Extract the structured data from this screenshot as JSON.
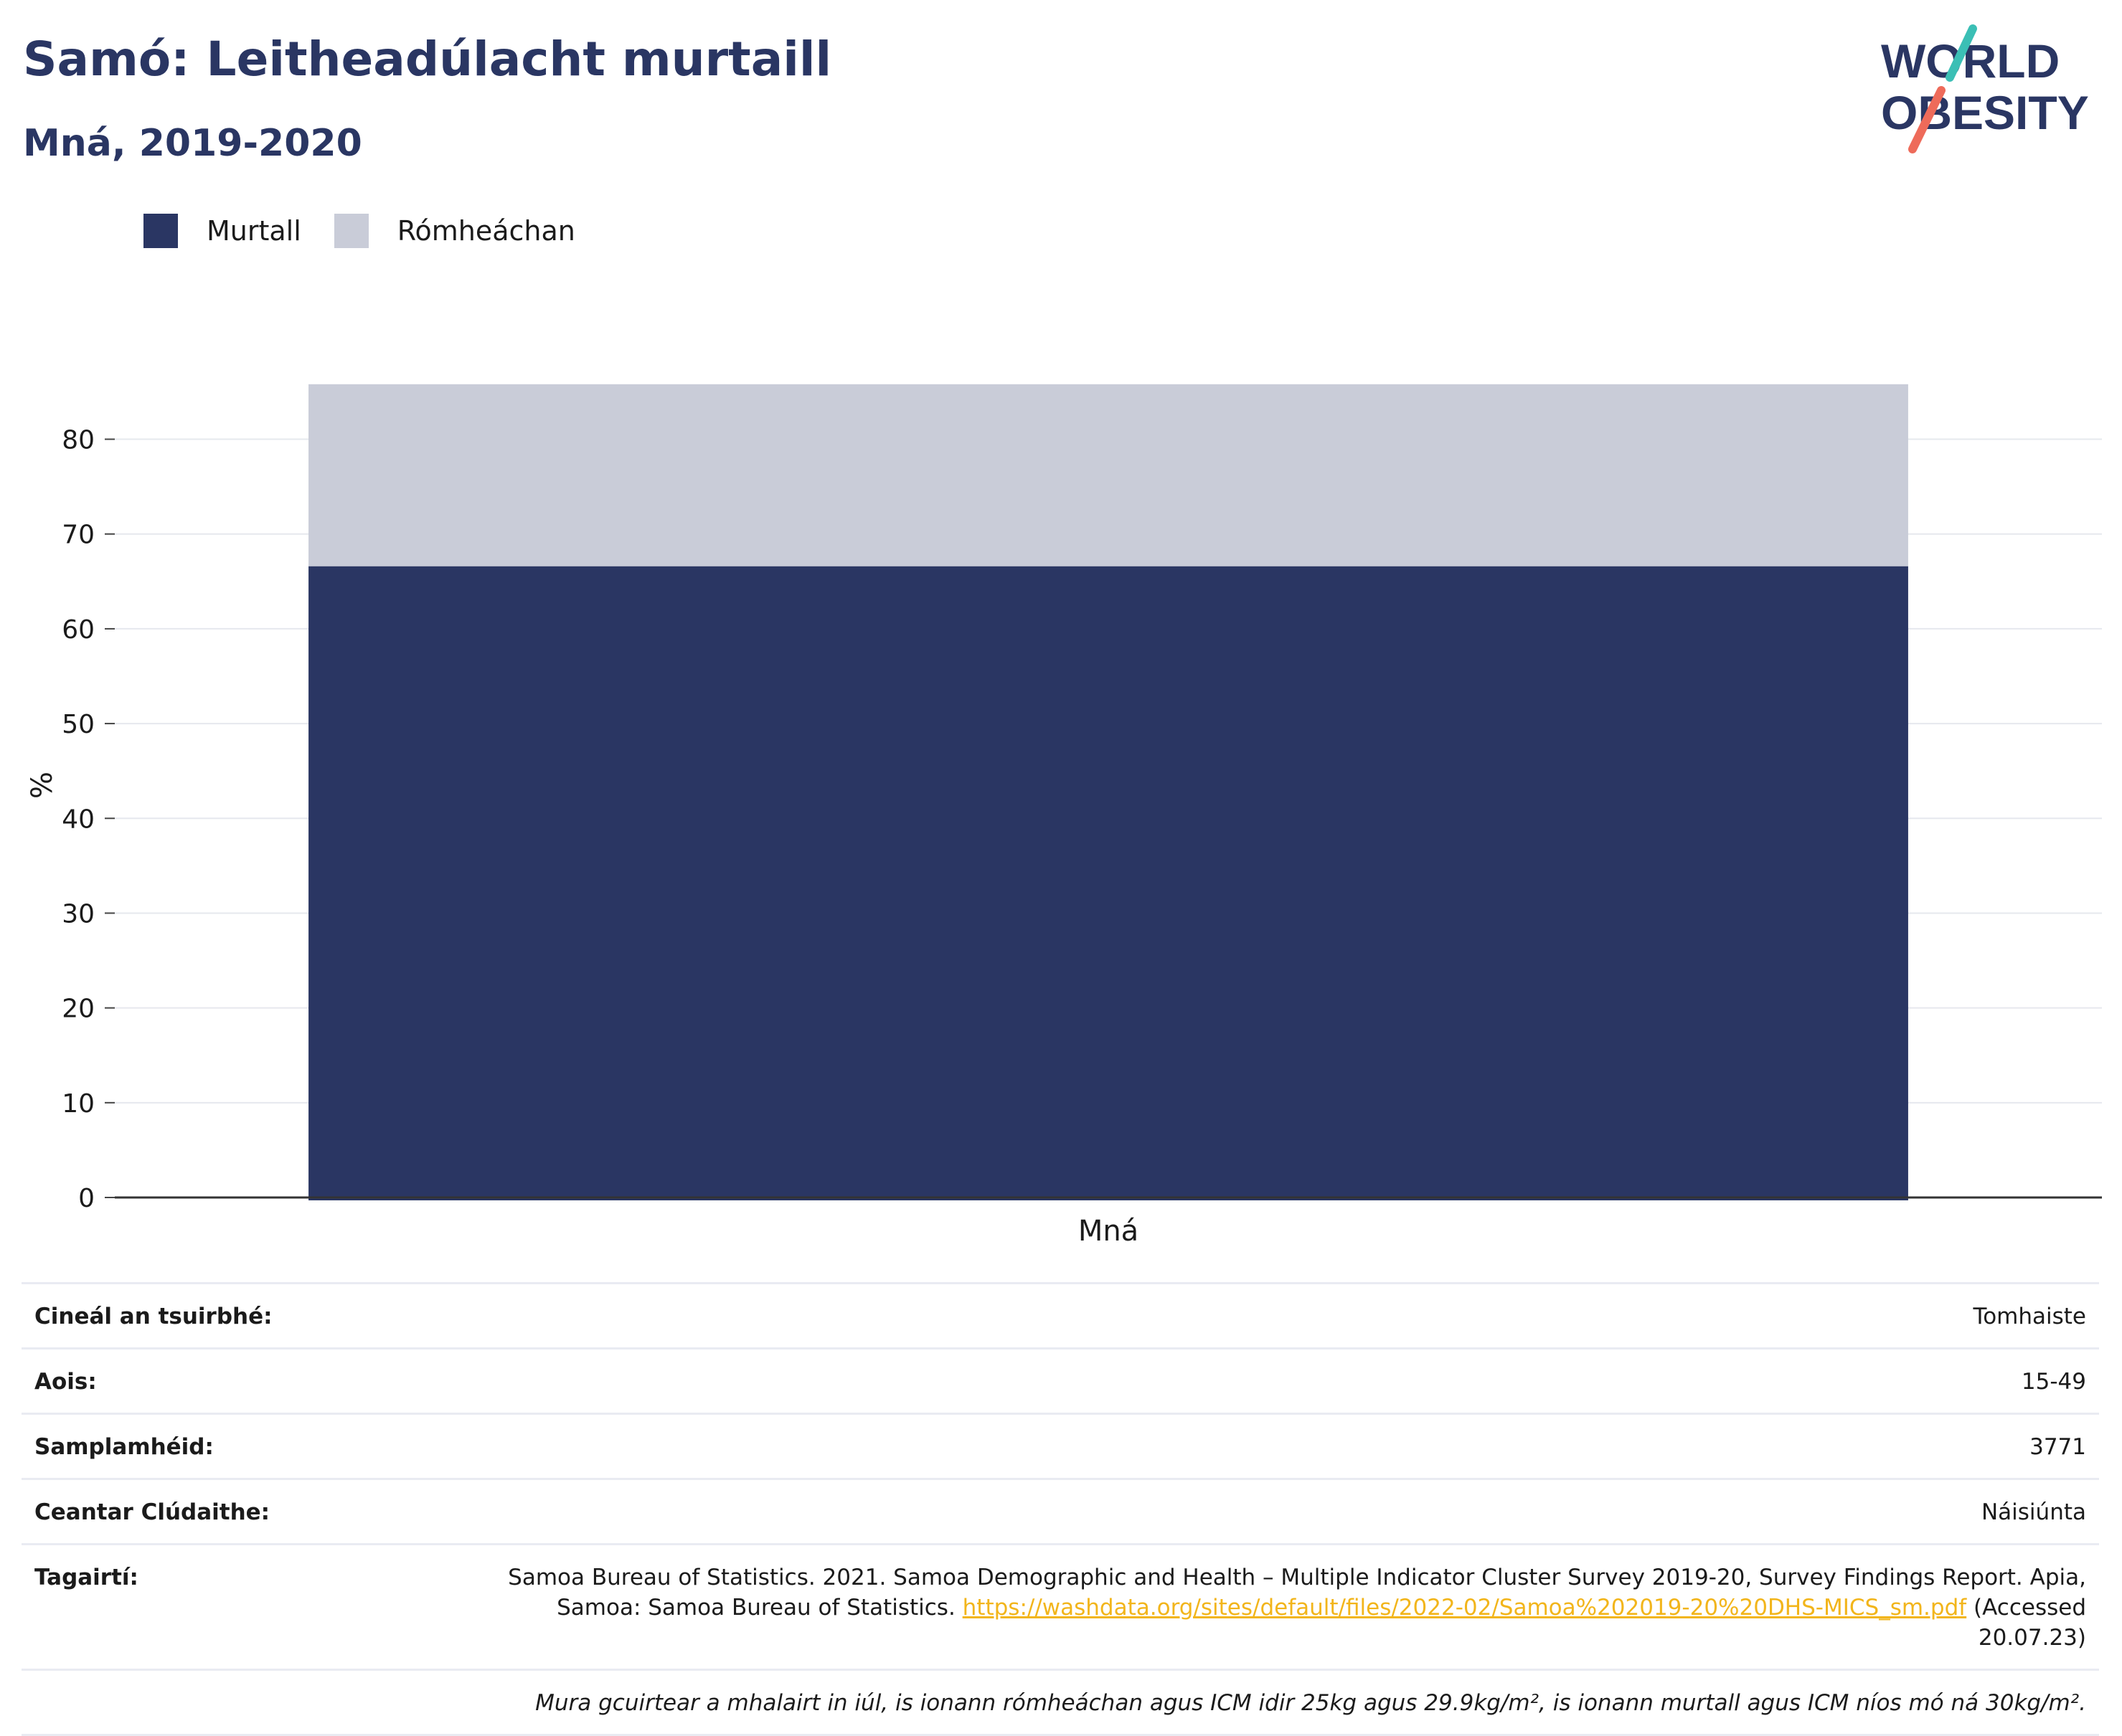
{
  "header": {
    "title": "Samó: Leitheadúlacht murtaill",
    "subtitle": "Mná, 2019-2020"
  },
  "logo": {
    "line1": "WORLD",
    "line2": "OBESITY"
  },
  "colors": {
    "title": "#2a3663",
    "murtall": "#2a3663",
    "romheachan": "#c9ccd8",
    "link": "#f2b51b",
    "logo_teal": "#3bbfb5",
    "logo_coral": "#ee6b5a"
  },
  "chart_data": {
    "type": "bar",
    "stacked": true,
    "categories": [
      "Mná"
    ],
    "series": [
      {
        "name": "Murtall",
        "values": [
          66.6
        ],
        "color": "#2a3663"
      },
      {
        "name": "Rómheáchan",
        "values": [
          19.2
        ],
        "color": "#c9ccd8"
      }
    ],
    "ylabel": "%",
    "ylim": [
      0,
      87
    ],
    "yticks": [
      0,
      10,
      20,
      30,
      40,
      50,
      60,
      70,
      80
    ],
    "grid": true,
    "legend_position": "top-left"
  },
  "info": {
    "survey_type_label": "Cineál an tsuirbhé:",
    "survey_type_value": "Tomhaiste",
    "age_label": "Aois:",
    "age_value": "15-49",
    "sample_label": "Samplamhéid:",
    "sample_value": "3771",
    "coverage_label": "Ceantar Clúdaithe:",
    "coverage_value": "Náisiúnta",
    "references_label": "Tagairtí:",
    "references_text": "Samoa Bureau of Statistics. 2021. Samoa Demographic and Health – Multiple Indicator Cluster Survey 2019-20, Survey Findings Report. Apia, Samoa: Samoa Bureau of Statistics. ",
    "references_link": "https://washdata.org/sites/default/files/2022-02/Samoa%202019-20%20DHS-MICS_sm.pdf",
    "references_accessed": " (Accessed 20.07.23)",
    "note": "Mura gcuirtear a mhalairt in iúl, is ionann rómheáchan agus ICM idir 25kg agus 29.9kg/m², is ionann murtall agus ICM níos mó ná 30kg/m²."
  }
}
